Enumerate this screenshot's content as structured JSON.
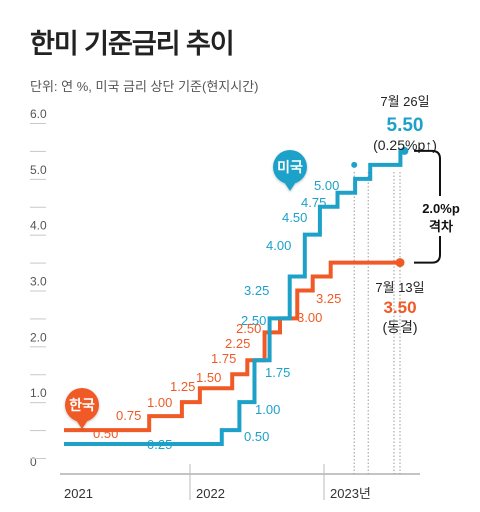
{
  "title": "한미 기준금리 추이",
  "subtitle": "단위: 연 %, 미국 금리 상단 기준(현지시간)",
  "colors": {
    "us": "#1da1c9",
    "korea": "#ef5a26",
    "grid": "#bdbdbd",
    "text": "#333333"
  },
  "chart_data": {
    "type": "line",
    "step": true,
    "title": "",
    "xlabel": "",
    "ylabel": "",
    "ylim": [
      0,
      6.0
    ],
    "y_ticks": [
      "0",
      "1.0",
      "2.0",
      "3.0",
      "4.0",
      "5.0",
      "6.0"
    ],
    "x_ticks": [
      "2021",
      "2022",
      "2023년"
    ],
    "grid": false,
    "series": [
      {
        "name": "미국",
        "color": "#1da1c9",
        "points": [
          [
            "2021-01-01",
            0.25
          ],
          [
            "2022-03-16",
            0.5
          ],
          [
            "2022-05-04",
            1.0
          ],
          [
            "2022-06-15",
            1.75
          ],
          [
            "2022-07-27",
            2.5
          ],
          [
            "2022-09-21",
            3.25
          ],
          [
            "2022-11-02",
            4.0
          ],
          [
            "2022-12-14",
            4.5
          ],
          [
            "2023-02-01",
            4.75
          ],
          [
            "2023-03-22",
            5.0
          ],
          [
            "2023-05-03",
            5.25
          ],
          [
            "2023-07-26",
            5.5
          ]
        ],
        "labels": [
          "0.25",
          "0.50",
          "1.00",
          "1.75",
          "2.50",
          "3.25",
          "4.00",
          "4.50",
          "4.75",
          "5.00"
        ]
      },
      {
        "name": "한국",
        "color": "#ef5a26",
        "points": [
          [
            "2021-01-01",
            0.5
          ],
          [
            "2021-08-26",
            0.75
          ],
          [
            "2021-11-25",
            1.0
          ],
          [
            "2022-01-14",
            1.25
          ],
          [
            "2022-04-14",
            1.5
          ],
          [
            "2022-05-26",
            1.75
          ],
          [
            "2022-07-13",
            2.25
          ],
          [
            "2022-08-25",
            2.5
          ],
          [
            "2022-10-12",
            3.0
          ],
          [
            "2022-11-24",
            3.25
          ],
          [
            "2023-01-13",
            3.5
          ]
        ],
        "labels": [
          "0.50",
          "0.75",
          "1.00",
          "1.25",
          "1.50",
          "1.75",
          "2.25",
          "2.50",
          "3.00",
          "3.25"
        ]
      }
    ],
    "annotations": {
      "us_latest_date": "7월 26일",
      "us_latest_value": "5.50",
      "us_latest_note": "(0.25%p↑)",
      "korea_latest_date": "7월 13일",
      "korea_latest_value": "3.50",
      "korea_latest_note": "(동결)",
      "gap_value": "2.0%p",
      "gap_label": "격차"
    }
  }
}
